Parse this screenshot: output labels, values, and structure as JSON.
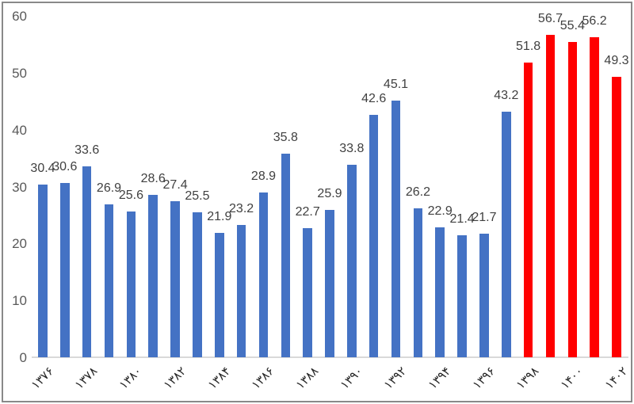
{
  "chart_data": {
    "type": "bar",
    "title": "",
    "xlabel": "",
    "ylabel": "",
    "years": [
      1376,
      1377,
      1378,
      1379,
      1380,
      1381,
      1382,
      1383,
      1384,
      1385,
      1386,
      1387,
      1388,
      1389,
      1390,
      1391,
      1392,
      1393,
      1394,
      1395,
      1396,
      1397,
      1398,
      1399,
      1400,
      1401,
      1402
    ],
    "values": [
      30.4,
      30.6,
      33.6,
      26.9,
      25.6,
      28.6,
      27.4,
      25.5,
      21.9,
      23.2,
      28.9,
      35.8,
      22.7,
      25.9,
      33.8,
      42.6,
      45.1,
      26.2,
      22.9,
      21.4,
      21.7,
      43.2,
      51.8,
      56.7,
      55.4,
      56.2,
      49.3
    ],
    "data_labels": [
      "30.4",
      "30.6",
      "33.6",
      "26.9",
      "25.6",
      "28.6",
      "27.4",
      "25.5",
      "21.9",
      "23.2",
      "28.9",
      "35.8",
      "22.7",
      "25.9",
      "33.8",
      "42.6",
      "45.1",
      "26.2",
      "22.9",
      "21.4",
      "21.7",
      "43.2",
      "51.8",
      "56.7",
      "55.4",
      "56.2",
      "49.3"
    ],
    "x_tick_labels": [
      "۱۳۷۶",
      "۱۳۷۸",
      "۱۳۸۰",
      "۱۳۸۲",
      "۱۳۸۴",
      "۱۳۸۶",
      "۱۳۸۸",
      "۱۳۹۰",
      "۱۳۹۲",
      "۱۳۹۴",
      "۱۳۹۶",
      "۱۳۹۸",
      "۱۴۰۰",
      "۱۴۰۲"
    ],
    "x_tick_every": 2,
    "y_ticks": [
      "0",
      "10",
      "20",
      "30",
      "40",
      "50",
      "60"
    ],
    "ylim": [
      0,
      60
    ],
    "grid": false,
    "legend": false,
    "colors": {
      "bar_default": "#4472C4",
      "bar_highlight": "#FF0000",
      "axis_line": "#d9d9d9",
      "axis_text": "#595959",
      "data_label_text": "#404040",
      "x_tick_text": "#262626"
    },
    "highlight_start_index": 22
  }
}
